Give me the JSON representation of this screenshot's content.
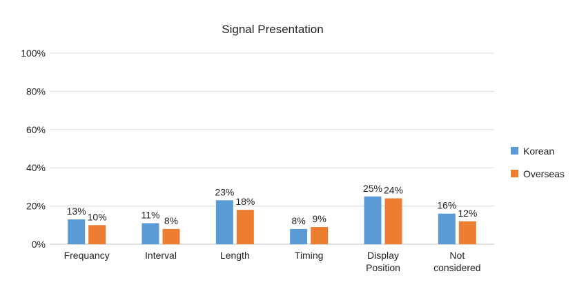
{
  "chart_data": {
    "type": "bar",
    "title": "Signal Presentation",
    "categories": [
      [
        "Frequancy"
      ],
      [
        "Interval"
      ],
      [
        "Length"
      ],
      [
        "Timing"
      ],
      [
        "Display",
        "Position"
      ],
      [
        "Not",
        "considered"
      ]
    ],
    "series": [
      {
        "name": "Korean",
        "color": "#5b9bd5",
        "values": [
          13,
          11,
          23,
          8,
          25,
          16
        ],
        "labels": [
          "13%",
          "11%",
          "23%",
          "8%",
          "25%",
          "16%"
        ]
      },
      {
        "name": "Overseas",
        "color": "#ed7d31",
        "values": [
          10,
          8,
          18,
          9,
          24,
          12
        ],
        "labels": [
          "10%",
          "8%",
          "18%",
          "9%",
          "24%",
          "12%"
        ]
      }
    ],
    "yticks": [
      "0%",
      "20%",
      "40%",
      "60%",
      "80%",
      "100%"
    ],
    "ylim": [
      0,
      100
    ],
    "xlabel": "",
    "ylabel": "",
    "grid": true,
    "legend_position": "right"
  }
}
